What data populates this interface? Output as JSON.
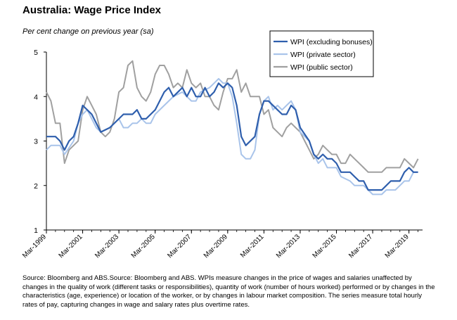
{
  "header": {
    "title": "Australia: Wage Price Index",
    "subtitle": "Per cent change on previous year (sa)"
  },
  "footer": {
    "source": "Source: Bloomberg and ABS.Source: Bloomberg and ABS.  WPIs measure changes in the price of wages and salaries unaffected by changes in the quality of work (different tasks or responsibilities), quantity of work (number of hours worked) performed or by changes in the characteristics (age, experience) or location of the worker, or by changes in labour market composition.  The series measure total hourly rates of pay, capturing changes in wage and salary rates plus overtime rates."
  },
  "chart_data": {
    "type": "line",
    "title": "Australia: Wage Price Index",
    "ylabel": "Per cent change on previous year (sa)",
    "xlabel": "",
    "ylim": [
      1,
      5
    ],
    "yticks": [
      1,
      2,
      3,
      4,
      5
    ],
    "x_range": [
      1999.0,
      2019.75
    ],
    "xticks": [
      {
        "label": "Mar-1999",
        "x": 1999.0
      },
      {
        "label": "Mar-2001",
        "x": 2001.0
      },
      {
        "label": "Mar-2003",
        "x": 2003.0
      },
      {
        "label": "Mar-2005",
        "x": 2005.0
      },
      {
        "label": "Mar-2007",
        "x": 2007.0
      },
      {
        "label": "Mar-2009",
        "x": 2009.0
      },
      {
        "label": "Mar-2011",
        "x": 2011.0
      },
      {
        "label": "Mar-2013",
        "x": 2013.0
      },
      {
        "label": "Mar-2015",
        "x": 2015.0
      },
      {
        "label": "Mar-2017",
        "x": 2017.0
      },
      {
        "label": "Mar-2019",
        "x": 2019.0
      }
    ],
    "legend_position": "top-right",
    "series": [
      {
        "name": "WPI (excluding bonuses)",
        "color": "#2f5fad",
        "points": [
          [
            1999.0,
            3.1
          ],
          [
            1999.5,
            3.1
          ],
          [
            1999.75,
            3.0
          ],
          [
            2000.0,
            2.8
          ],
          [
            2000.25,
            3.0
          ],
          [
            2000.5,
            3.1
          ],
          [
            2000.75,
            3.4
          ],
          [
            2001.0,
            3.8
          ],
          [
            2001.5,
            3.6
          ],
          [
            2002.0,
            3.2
          ],
          [
            2002.5,
            3.3
          ],
          [
            2003.0,
            3.5
          ],
          [
            2003.25,
            3.6
          ],
          [
            2003.75,
            3.6
          ],
          [
            2004.0,
            3.7
          ],
          [
            2004.25,
            3.5
          ],
          [
            2004.5,
            3.5
          ],
          [
            2005.0,
            3.7
          ],
          [
            2005.5,
            4.1
          ],
          [
            2005.75,
            4.2
          ],
          [
            2006.0,
            4.0
          ],
          [
            2006.5,
            4.2
          ],
          [
            2006.75,
            4.0
          ],
          [
            2007.0,
            4.2
          ],
          [
            2007.25,
            4.0
          ],
          [
            2007.5,
            4.0
          ],
          [
            2007.75,
            4.2
          ],
          [
            2008.0,
            4.0
          ],
          [
            2008.25,
            4.1
          ],
          [
            2008.5,
            4.3
          ],
          [
            2008.75,
            4.2
          ],
          [
            2009.0,
            4.3
          ],
          [
            2009.25,
            4.2
          ],
          [
            2009.5,
            3.8
          ],
          [
            2009.75,
            3.1
          ],
          [
            2010.0,
            2.9
          ],
          [
            2010.5,
            3.1
          ],
          [
            2010.75,
            3.6
          ],
          [
            2011.0,
            3.9
          ],
          [
            2011.25,
            3.9
          ],
          [
            2011.5,
            3.8
          ],
          [
            2011.75,
            3.7
          ],
          [
            2012.0,
            3.6
          ],
          [
            2012.25,
            3.6
          ],
          [
            2012.5,
            3.8
          ],
          [
            2012.75,
            3.7
          ],
          [
            2013.0,
            3.3
          ],
          [
            2013.5,
            3.0
          ],
          [
            2013.75,
            2.7
          ],
          [
            2014.0,
            2.6
          ],
          [
            2014.25,
            2.7
          ],
          [
            2014.5,
            2.6
          ],
          [
            2014.75,
            2.6
          ],
          [
            2015.0,
            2.5
          ],
          [
            2015.25,
            2.3
          ],
          [
            2015.75,
            2.3
          ],
          [
            2016.0,
            2.2
          ],
          [
            2016.25,
            2.1
          ],
          [
            2016.5,
            2.1
          ],
          [
            2016.75,
            1.9
          ],
          [
            2017.5,
            1.9
          ],
          [
            2017.75,
            2.0
          ],
          [
            2018.0,
            2.1
          ],
          [
            2018.5,
            2.1
          ],
          [
            2018.75,
            2.3
          ],
          [
            2019.0,
            2.4
          ],
          [
            2019.25,
            2.3
          ],
          [
            2019.5,
            2.3
          ]
        ]
      },
      {
        "name": "WPI (private sector)",
        "color": "#a9c4ea",
        "points": [
          [
            1999.0,
            2.8
          ],
          [
            1999.25,
            2.9
          ],
          [
            1999.75,
            2.9
          ],
          [
            2000.0,
            2.7
          ],
          [
            2000.5,
            3.0
          ],
          [
            2000.75,
            3.4
          ],
          [
            2001.0,
            3.6
          ],
          [
            2001.25,
            3.7
          ],
          [
            2001.5,
            3.5
          ],
          [
            2001.75,
            3.3
          ],
          [
            2002.0,
            3.2
          ],
          [
            2002.5,
            3.3
          ],
          [
            2003.0,
            3.5
          ],
          [
            2003.25,
            3.3
          ],
          [
            2003.5,
            3.3
          ],
          [
            2003.75,
            3.4
          ],
          [
            2004.0,
            3.4
          ],
          [
            2004.25,
            3.5
          ],
          [
            2004.5,
            3.4
          ],
          [
            2004.75,
            3.4
          ],
          [
            2005.0,
            3.6
          ],
          [
            2005.5,
            3.8
          ],
          [
            2005.75,
            3.9
          ],
          [
            2006.0,
            4.0
          ],
          [
            2006.5,
            4.1
          ],
          [
            2006.75,
            4.0
          ],
          [
            2007.0,
            3.9
          ],
          [
            2007.25,
            3.9
          ],
          [
            2007.5,
            4.1
          ],
          [
            2008.0,
            4.2
          ],
          [
            2008.25,
            4.3
          ],
          [
            2008.5,
            4.4
          ],
          [
            2008.75,
            4.3
          ],
          [
            2009.0,
            4.3
          ],
          [
            2009.25,
            4.0
          ],
          [
            2009.5,
            3.4
          ],
          [
            2009.75,
            2.7
          ],
          [
            2010.0,
            2.6
          ],
          [
            2010.25,
            2.6
          ],
          [
            2010.5,
            2.8
          ],
          [
            2010.75,
            3.6
          ],
          [
            2011.0,
            3.9
          ],
          [
            2011.25,
            4.0
          ],
          [
            2011.5,
            3.7
          ],
          [
            2011.75,
            3.8
          ],
          [
            2012.0,
            3.7
          ],
          [
            2012.25,
            3.8
          ],
          [
            2012.5,
            3.9
          ],
          [
            2012.75,
            3.7
          ],
          [
            2013.0,
            3.2
          ],
          [
            2013.5,
            3.0
          ],
          [
            2013.75,
            2.7
          ],
          [
            2014.0,
            2.5
          ],
          [
            2014.25,
            2.6
          ],
          [
            2014.5,
            2.4
          ],
          [
            2014.75,
            2.4
          ],
          [
            2015.0,
            2.4
          ],
          [
            2015.25,
            2.2
          ],
          [
            2015.75,
            2.1
          ],
          [
            2016.0,
            2.0
          ],
          [
            2016.5,
            2.0
          ],
          [
            2016.75,
            1.9
          ],
          [
            2017.0,
            1.8
          ],
          [
            2017.5,
            1.8
          ],
          [
            2017.75,
            1.9
          ],
          [
            2018.0,
            1.9
          ],
          [
            2018.25,
            1.9
          ],
          [
            2018.5,
            2.0
          ],
          [
            2018.75,
            2.1
          ],
          [
            2019.0,
            2.1
          ],
          [
            2019.25,
            2.3
          ],
          [
            2019.5,
            2.3
          ]
        ]
      },
      {
        "name": "WPI (public sector)",
        "color": "#a0a0a0",
        "points": [
          [
            1999.0,
            4.1
          ],
          [
            1999.25,
            3.9
          ],
          [
            1999.5,
            3.4
          ],
          [
            1999.75,
            3.4
          ],
          [
            2000.0,
            2.5
          ],
          [
            2000.25,
            2.8
          ],
          [
            2000.5,
            2.9
          ],
          [
            2000.75,
            3.0
          ],
          [
            2001.0,
            3.7
          ],
          [
            2001.25,
            4.0
          ],
          [
            2001.5,
            3.8
          ],
          [
            2001.75,
            3.6
          ],
          [
            2002.0,
            3.2
          ],
          [
            2002.25,
            3.1
          ],
          [
            2002.5,
            3.2
          ],
          [
            2002.75,
            3.5
          ],
          [
            2003.0,
            4.1
          ],
          [
            2003.25,
            4.2
          ],
          [
            2003.5,
            4.7
          ],
          [
            2003.75,
            4.8
          ],
          [
            2004.0,
            4.2
          ],
          [
            2004.25,
            4.0
          ],
          [
            2004.5,
            3.9
          ],
          [
            2004.75,
            4.1
          ],
          [
            2005.0,
            4.5
          ],
          [
            2005.25,
            4.7
          ],
          [
            2005.5,
            4.7
          ],
          [
            2005.75,
            4.5
          ],
          [
            2006.0,
            4.2
          ],
          [
            2006.25,
            4.3
          ],
          [
            2006.5,
            4.2
          ],
          [
            2006.75,
            4.6
          ],
          [
            2007.0,
            4.3
          ],
          [
            2007.25,
            4.2
          ],
          [
            2007.5,
            4.3
          ],
          [
            2007.75,
            4.0
          ],
          [
            2008.0,
            4.0
          ],
          [
            2008.25,
            3.8
          ],
          [
            2008.5,
            3.7
          ],
          [
            2008.75,
            4.1
          ],
          [
            2009.0,
            4.4
          ],
          [
            2009.25,
            4.4
          ],
          [
            2009.5,
            4.6
          ],
          [
            2009.75,
            4.1
          ],
          [
            2010.0,
            4.3
          ],
          [
            2010.25,
            4.0
          ],
          [
            2010.5,
            4.0
          ],
          [
            2010.75,
            4.0
          ],
          [
            2011.0,
            3.6
          ],
          [
            2011.25,
            3.7
          ],
          [
            2011.5,
            3.3
          ],
          [
            2011.75,
            3.2
          ],
          [
            2012.0,
            3.1
          ],
          [
            2012.25,
            3.3
          ],
          [
            2012.5,
            3.4
          ],
          [
            2012.75,
            3.3
          ],
          [
            2013.0,
            3.2
          ],
          [
            2013.25,
            3.0
          ],
          [
            2013.5,
            2.8
          ],
          [
            2013.75,
            2.6
          ],
          [
            2014.0,
            2.7
          ],
          [
            2014.25,
            2.9
          ],
          [
            2014.5,
            2.8
          ],
          [
            2014.75,
            2.7
          ],
          [
            2015.0,
            2.7
          ],
          [
            2015.25,
            2.5
          ],
          [
            2015.5,
            2.5
          ],
          [
            2015.75,
            2.7
          ],
          [
            2016.0,
            2.6
          ],
          [
            2016.5,
            2.4
          ],
          [
            2016.75,
            2.3
          ],
          [
            2017.0,
            2.3
          ],
          [
            2017.5,
            2.3
          ],
          [
            2017.75,
            2.4
          ],
          [
            2018.5,
            2.4
          ],
          [
            2018.75,
            2.6
          ],
          [
            2019.0,
            2.5
          ],
          [
            2019.25,
            2.4
          ],
          [
            2019.5,
            2.6
          ]
        ]
      }
    ]
  }
}
